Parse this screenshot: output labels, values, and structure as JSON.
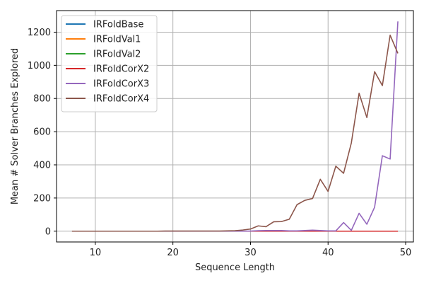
{
  "chart_data": {
    "type": "line",
    "title": "",
    "xlabel": "Sequence Length",
    "ylabel": "Mean # Solver Branches Explored",
    "xlim": [
      5,
      51
    ],
    "ylim": [
      -65,
      1330
    ],
    "xticks": [
      10,
      20,
      30,
      40,
      50
    ],
    "yticks": [
      0,
      200,
      400,
      600,
      800,
      1000,
      1200
    ],
    "grid": true,
    "legend_position": "top-left",
    "x": [
      7,
      8,
      9,
      10,
      11,
      12,
      13,
      14,
      15,
      16,
      17,
      18,
      19,
      20,
      21,
      22,
      23,
      24,
      25,
      26,
      27,
      28,
      29,
      30,
      31,
      32,
      33,
      34,
      35,
      36,
      37,
      38,
      39,
      40,
      41,
      42,
      43,
      44,
      45,
      46,
      47,
      48,
      49
    ],
    "series": [
      {
        "name": "IRFoldBase",
        "color": "#1f77b4",
        "values": [
          0,
          0,
          0,
          0,
          0,
          0,
          0,
          0,
          0,
          0,
          0,
          0,
          0,
          0,
          0,
          0,
          0,
          0,
          0,
          0,
          0,
          0,
          0,
          0,
          0,
          0,
          0,
          0,
          0,
          0,
          0,
          0,
          0,
          0,
          0,
          0,
          0,
          0,
          0,
          0,
          0,
          0,
          0
        ]
      },
      {
        "name": "IRFoldVal1",
        "color": "#ff7f0e",
        "values": [
          0,
          0,
          0,
          0,
          0,
          0,
          0,
          0,
          0,
          0,
          0,
          0,
          0,
          0,
          0,
          0,
          0,
          0,
          0,
          0,
          0,
          0,
          0,
          0,
          0,
          0,
          0,
          0,
          0,
          0,
          0,
          0,
          0,
          0,
          0,
          0,
          0,
          0,
          0,
          0,
          0,
          0,
          0
        ]
      },
      {
        "name": "IRFoldVal2",
        "color": "#2ca02c",
        "values": [
          0,
          0,
          0,
          0,
          0,
          0,
          0,
          0,
          0,
          0,
          0,
          0,
          0,
          0,
          0,
          0,
          0,
          0,
          0,
          0,
          0,
          0,
          0,
          0,
          0,
          0,
          0,
          0,
          0,
          0,
          0,
          0,
          0,
          0,
          0,
          0,
          0,
          0,
          0,
          0,
          0,
          0,
          0
        ]
      },
      {
        "name": "IRFoldCorX2",
        "color": "#d62728",
        "values": [
          0,
          0,
          0,
          0,
          0,
          0,
          0,
          0,
          0,
          0,
          0,
          0,
          0,
          0,
          0,
          0,
          0,
          0,
          0,
          0,
          0,
          0,
          0,
          0,
          0,
          0,
          0,
          0,
          0,
          0,
          0,
          0,
          0,
          0,
          0,
          0,
          0,
          0,
          0,
          0,
          0,
          0,
          0
        ]
      },
      {
        "name": "IRFoldCorX3",
        "color": "#9467bd",
        "values": [
          0,
          0,
          0,
          0,
          0,
          0,
          0,
          0,
          0,
          0,
          0,
          0,
          0,
          0,
          0,
          0,
          0,
          0,
          0,
          0,
          0,
          0,
          0,
          1,
          3,
          4,
          4,
          4,
          2,
          2,
          4,
          6,
          4,
          2,
          2,
          52,
          5,
          108,
          42,
          145,
          455,
          435,
          1265
        ]
      },
      {
        "name": "IRFoldCorX4",
        "color": "#8c564b",
        "values": [
          0,
          0,
          0,
          0,
          0,
          0,
          0,
          0,
          0,
          0,
          0,
          0,
          1,
          1,
          1,
          1,
          1,
          1,
          1,
          1,
          2,
          3,
          7,
          13,
          32,
          27,
          57,
          58,
          72,
          160,
          186,
          197,
          313,
          240,
          392,
          349,
          532,
          832,
          685,
          962,
          878,
          1182,
          1072
        ]
      }
    ]
  }
}
